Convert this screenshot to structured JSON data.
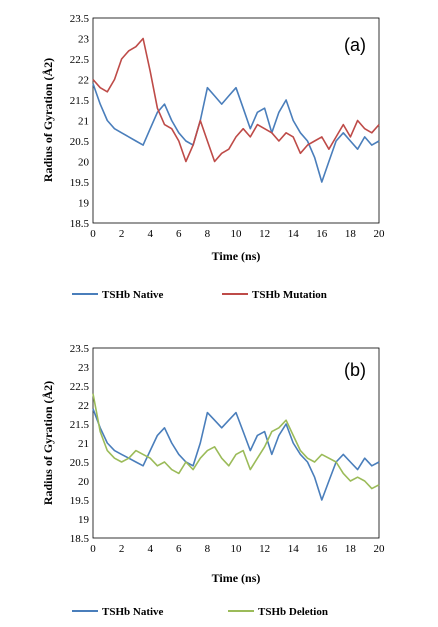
{
  "chart_data": [
    {
      "type": "line",
      "panel_label": "(a)",
      "xlabel": "Time (ns)",
      "ylabel": "Radius of Gyration (Å2)",
      "xlim": [
        0,
        20
      ],
      "ylim": [
        18.5,
        23.5
      ],
      "xticks": [
        0,
        2,
        4,
        6,
        8,
        10,
        12,
        14,
        16,
        18,
        20
      ],
      "yticks": [
        18.5,
        19,
        19.5,
        20,
        20.5,
        21,
        21.5,
        22,
        22.5,
        23,
        23.5
      ],
      "grid": false,
      "legend_position": "bottom",
      "series": [
        {
          "name": "TSHb Native",
          "color": "#4a7ebb",
          "x": [
            0,
            0.5,
            1,
            1.5,
            2,
            2.5,
            3,
            3.5,
            4,
            4.5,
            5,
            5.5,
            6,
            6.5,
            7,
            7.5,
            8,
            8.5,
            9,
            9.5,
            10,
            10.5,
            11,
            11.5,
            12,
            12.5,
            13,
            13.5,
            14,
            14.5,
            15,
            15.5,
            16,
            16.5,
            17,
            17.5,
            18,
            18.5,
            19,
            19.5,
            20
          ],
          "values": [
            21.9,
            21.4,
            21.0,
            20.8,
            20.7,
            20.6,
            20.5,
            20.4,
            20.8,
            21.2,
            21.4,
            21.0,
            20.7,
            20.5,
            20.4,
            21.0,
            21.8,
            21.6,
            21.4,
            21.6,
            21.8,
            21.3,
            20.8,
            21.2,
            21.3,
            20.7,
            21.2,
            21.5,
            21.0,
            20.7,
            20.5,
            20.1,
            19.5,
            20.0,
            20.5,
            20.7,
            20.5,
            20.3,
            20.6,
            20.4,
            20.5
          ]
        },
        {
          "name": "TSHb Mutation",
          "color": "#be4b48",
          "x": [
            0,
            0.5,
            1,
            1.5,
            2,
            2.5,
            3,
            3.5,
            4,
            4.5,
            5,
            5.5,
            6,
            6.5,
            7,
            7.5,
            8,
            8.5,
            9,
            9.5,
            10,
            10.5,
            11,
            11.5,
            12,
            12.5,
            13,
            13.5,
            14,
            14.5,
            15,
            15.5,
            16,
            16.5,
            17,
            17.5,
            18,
            18.5,
            19,
            19.5,
            20
          ],
          "values": [
            22.0,
            21.8,
            21.7,
            22.0,
            22.5,
            22.7,
            22.8,
            23.0,
            22.2,
            21.3,
            20.9,
            20.8,
            20.5,
            20.0,
            20.4,
            21.0,
            20.5,
            20.0,
            20.2,
            20.3,
            20.6,
            20.8,
            20.6,
            20.9,
            20.8,
            20.7,
            20.5,
            20.7,
            20.6,
            20.2,
            20.4,
            20.5,
            20.6,
            20.3,
            20.6,
            20.9,
            20.6,
            21.0,
            20.8,
            20.7,
            20.9
          ]
        }
      ]
    },
    {
      "type": "line",
      "panel_label": "(b)",
      "xlabel": "Time (ns)",
      "ylabel": "Radius of Gyration (Å2)",
      "xlim": [
        0,
        20
      ],
      "ylim": [
        18.5,
        23.5
      ],
      "xticks": [
        0,
        2,
        4,
        6,
        8,
        10,
        12,
        14,
        16,
        18,
        20
      ],
      "yticks": [
        18.5,
        19,
        19.5,
        20,
        20.5,
        21,
        21.5,
        22,
        22.5,
        23,
        23.5
      ],
      "grid": false,
      "legend_position": "bottom",
      "series": [
        {
          "name": "TSHb Native",
          "color": "#4a7ebb",
          "x": [
            0,
            0.5,
            1,
            1.5,
            2,
            2.5,
            3,
            3.5,
            4,
            4.5,
            5,
            5.5,
            6,
            6.5,
            7,
            7.5,
            8,
            8.5,
            9,
            9.5,
            10,
            10.5,
            11,
            11.5,
            12,
            12.5,
            13,
            13.5,
            14,
            14.5,
            15,
            15.5,
            16,
            16.5,
            17,
            17.5,
            18,
            18.5,
            19,
            19.5,
            20
          ],
          "values": [
            21.9,
            21.4,
            21.0,
            20.8,
            20.7,
            20.6,
            20.5,
            20.4,
            20.8,
            21.2,
            21.4,
            21.0,
            20.7,
            20.5,
            20.4,
            21.0,
            21.8,
            21.6,
            21.4,
            21.6,
            21.8,
            21.3,
            20.8,
            21.2,
            21.3,
            20.7,
            21.2,
            21.5,
            21.0,
            20.7,
            20.5,
            20.1,
            19.5,
            20.0,
            20.5,
            20.7,
            20.5,
            20.3,
            20.6,
            20.4,
            20.5
          ]
        },
        {
          "name": "TSHb Deletion",
          "color": "#9bbb59",
          "x": [
            0,
            0.5,
            1,
            1.5,
            2,
            2.5,
            3,
            3.5,
            4,
            4.5,
            5,
            5.5,
            6,
            6.5,
            7,
            7.5,
            8,
            8.5,
            9,
            9.5,
            10,
            10.5,
            11,
            11.5,
            12,
            12.5,
            13,
            13.5,
            14,
            14.5,
            15,
            15.5,
            16,
            16.5,
            17,
            17.5,
            18,
            18.5,
            19,
            19.5,
            20
          ],
          "values": [
            22.3,
            21.3,
            20.8,
            20.6,
            20.5,
            20.6,
            20.8,
            20.7,
            20.6,
            20.4,
            20.5,
            20.3,
            20.2,
            20.5,
            20.3,
            20.6,
            20.8,
            20.9,
            20.6,
            20.4,
            20.7,
            20.8,
            20.3,
            20.6,
            20.9,
            21.3,
            21.4,
            21.6,
            21.2,
            20.8,
            20.6,
            20.5,
            20.7,
            20.6,
            20.5,
            20.2,
            20.0,
            20.1,
            20.0,
            19.8,
            19.9
          ]
        }
      ]
    }
  ]
}
